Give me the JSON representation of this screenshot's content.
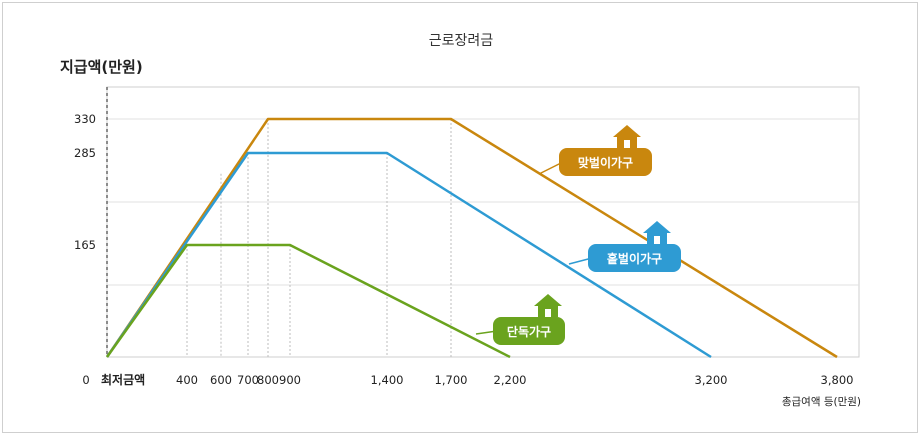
{
  "chart_data": {
    "type": "line",
    "title": "근로장려금",
    "ylabel": "지급액(만원)",
    "xlabel": "총급여액 등(만원)",
    "min_label": "최저금액",
    "origin_label": "0",
    "x_ticks": [
      400,
      600,
      700,
      800,
      900,
      1400,
      1700,
      2200,
      3200,
      3800
    ],
    "x_tick_labels": [
      "400",
      "600",
      "700",
      "800",
      "900",
      "1,400",
      "1,700",
      "2,200",
      "3,200",
      "3,800"
    ],
    "y_ticks": [
      165,
      285,
      330
    ],
    "y_tick_labels": [
      "165",
      "285",
      "330"
    ],
    "ylim": [
      0,
      360
    ],
    "grid": true,
    "series": [
      {
        "name": "맞벌이가구",
        "color": "#c9870e",
        "x": [
          0,
          800,
          1700,
          3800
        ],
        "y": [
          0,
          330,
          330,
          0
        ]
      },
      {
        "name": "홑벌이가구",
        "color": "#2e9bd3",
        "x": [
          0,
          700,
          1400,
          3200
        ],
        "y": [
          0,
          285,
          285,
          0
        ]
      },
      {
        "name": "단독가구",
        "color": "#6aa31e",
        "x": [
          0,
          400,
          900,
          2200
        ],
        "y": [
          0,
          165,
          165,
          0
        ]
      }
    ]
  }
}
